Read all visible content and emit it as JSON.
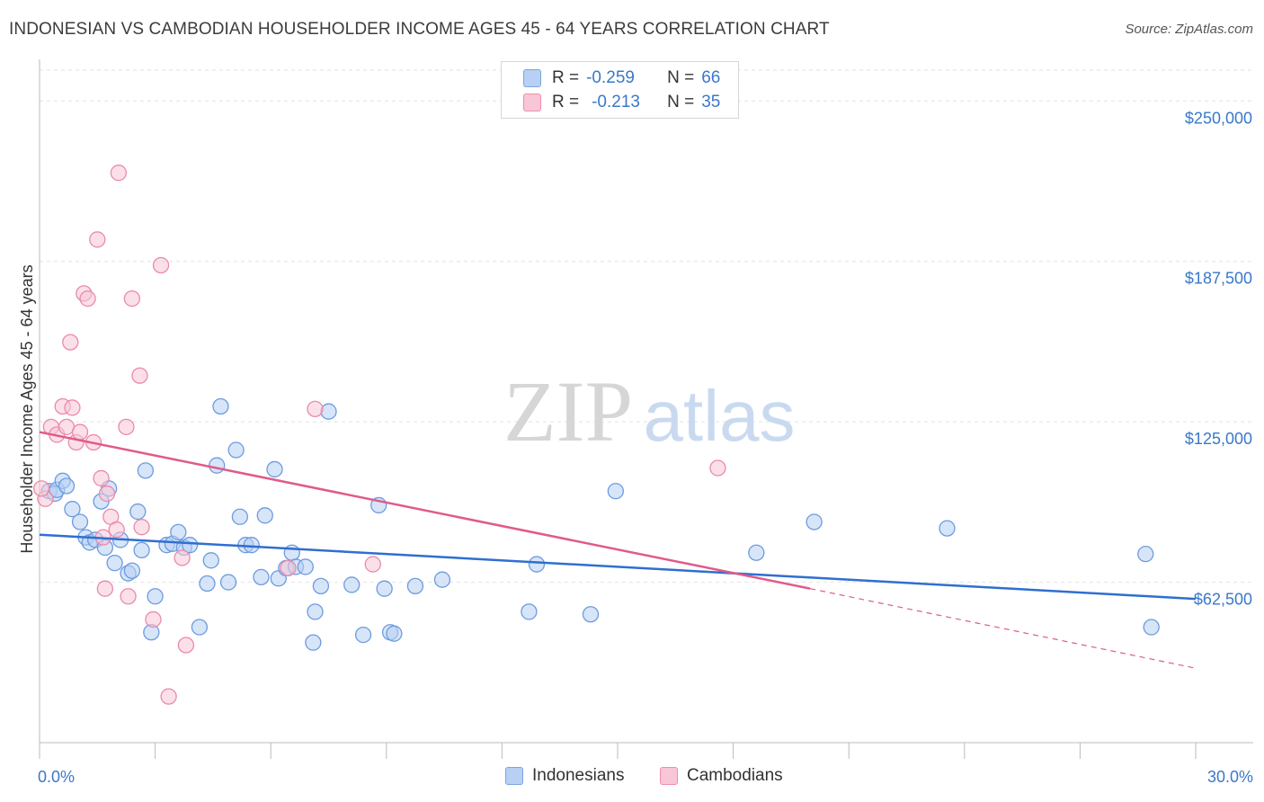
{
  "header": {
    "title": "INDONESIAN VS CAMBODIAN HOUSEHOLDER INCOME AGES 45 - 64 YEARS CORRELATION CHART",
    "source": "Source: ZipAtlas.com"
  },
  "legend": {
    "row1": {
      "r_label": "R =",
      "r_value": "-0.259",
      "n_label": "N =",
      "n_value": "66"
    },
    "row2": {
      "r_label": "R =",
      "r_value": "-0.213",
      "n_label": "N =",
      "n_value": "35"
    }
  },
  "bottom_legend": {
    "series1": "Indonesians",
    "series2": "Cambodians"
  },
  "watermark": {
    "zip": "ZIP",
    "atlas": "atlas"
  },
  "colors": {
    "blue": "#3a78c9",
    "blue_fill": "#b7d0f3",
    "blue_line": "#2f6fd0",
    "pink_fill": "#f8c6d6",
    "pink_line": "#e05a8a"
  },
  "chart_data": {
    "type": "scatter",
    "title": "INDONESIAN VS CAMBODIAN HOUSEHOLDER INCOME AGES 45 - 64 YEARS CORRELATION CHART",
    "xlabel": "",
    "ylabel": "Householder Income Ages 45 - 64 years",
    "xlim": [
      0,
      30
    ],
    "ylim": [
      0,
      262000
    ],
    "x_tick_labels": [
      "0.0%",
      "30.0%"
    ],
    "y_ticks": [
      62500,
      125000,
      187500,
      250000
    ],
    "y_tick_labels": [
      "$62,500",
      "$125,000",
      "$187,500",
      "$250,000"
    ],
    "series": [
      {
        "name": "Indonesians",
        "r": -0.259,
        "n": 66,
        "trend": {
          "x": [
            0,
            30
          ],
          "y": [
            81000,
            56000
          ]
        },
        "points": [
          [
            0.25,
            98000
          ],
          [
            0.4,
            97000
          ],
          [
            0.45,
            98500
          ],
          [
            0.6,
            102000
          ],
          [
            0.7,
            100000
          ],
          [
            0.85,
            91000
          ],
          [
            1.05,
            86000
          ],
          [
            1.2,
            80000
          ],
          [
            1.3,
            78000
          ],
          [
            1.45,
            79000
          ],
          [
            1.6,
            94000
          ],
          [
            1.7,
            76000
          ],
          [
            1.8,
            99000
          ],
          [
            1.95,
            70000
          ],
          [
            2.1,
            79000
          ],
          [
            2.3,
            66000
          ],
          [
            2.4,
            67000
          ],
          [
            2.55,
            90000
          ],
          [
            2.65,
            75000
          ],
          [
            2.75,
            106000
          ],
          [
            2.9,
            43000
          ],
          [
            3.0,
            57000
          ],
          [
            3.3,
            77000
          ],
          [
            3.45,
            77500
          ],
          [
            3.6,
            82000
          ],
          [
            3.75,
            76000
          ],
          [
            3.9,
            77000
          ],
          [
            4.15,
            45000
          ],
          [
            4.35,
            62000
          ],
          [
            4.45,
            71000
          ],
          [
            4.6,
            108000
          ],
          [
            4.7,
            131000
          ],
          [
            4.9,
            62500
          ],
          [
            5.1,
            114000
          ],
          [
            5.2,
            88000
          ],
          [
            5.35,
            77000
          ],
          [
            5.5,
            77000
          ],
          [
            5.75,
            64500
          ],
          [
            5.85,
            88500
          ],
          [
            6.1,
            106500
          ],
          [
            6.2,
            64000
          ],
          [
            6.4,
            68000
          ],
          [
            6.55,
            74000
          ],
          [
            6.65,
            68500
          ],
          [
            6.9,
            68500
          ],
          [
            7.1,
            39000
          ],
          [
            7.15,
            51000
          ],
          [
            7.3,
            61000
          ],
          [
            7.5,
            129000
          ],
          [
            8.1,
            61500
          ],
          [
            8.4,
            42000
          ],
          [
            8.8,
            92500
          ],
          [
            8.95,
            60000
          ],
          [
            9.1,
            43000
          ],
          [
            9.2,
            42500
          ],
          [
            9.75,
            61000
          ],
          [
            10.45,
            63500
          ],
          [
            12.7,
            51000
          ],
          [
            12.9,
            69500
          ],
          [
            14.3,
            50000
          ],
          [
            14.95,
            98000
          ],
          [
            18.6,
            74000
          ],
          [
            20.1,
            86000
          ],
          [
            23.55,
            83500
          ],
          [
            28.7,
            73500
          ],
          [
            28.85,
            45000
          ]
        ]
      },
      {
        "name": "Cambodians",
        "r": -0.213,
        "n": 35,
        "trend": {
          "x": [
            0,
            20
          ],
          "y": [
            121000,
            60000
          ]
        },
        "trend_dashed": {
          "x": [
            20,
            30
          ],
          "y": [
            60000,
            29000
          ]
        },
        "points": [
          [
            0.15,
            95000
          ],
          [
            0.3,
            123000
          ],
          [
            0.45,
            120000
          ],
          [
            0.6,
            131000
          ],
          [
            0.7,
            123000
          ],
          [
            0.8,
            156000
          ],
          [
            0.85,
            130500
          ],
          [
            0.95,
            117000
          ],
          [
            1.05,
            121000
          ],
          [
            1.15,
            175000
          ],
          [
            1.25,
            173000
          ],
          [
            1.4,
            117000
          ],
          [
            1.5,
            196000
          ],
          [
            1.6,
            103000
          ],
          [
            1.65,
            80000
          ],
          [
            1.7,
            60000
          ],
          [
            1.75,
            97000
          ],
          [
            1.85,
            88000
          ],
          [
            2.0,
            83000
          ],
          [
            2.05,
            222000
          ],
          [
            2.25,
            123000
          ],
          [
            2.3,
            57000
          ],
          [
            2.4,
            173000
          ],
          [
            2.6,
            143000
          ],
          [
            2.65,
            84000
          ],
          [
            2.95,
            48000
          ],
          [
            3.15,
            186000
          ],
          [
            3.35,
            18000
          ],
          [
            3.7,
            72000
          ],
          [
            3.8,
            38000
          ],
          [
            6.45,
            68000
          ],
          [
            7.15,
            130000
          ],
          [
            8.65,
            69500
          ],
          [
            17.6,
            107000
          ],
          [
            0.05,
            99000
          ]
        ]
      }
    ]
  }
}
